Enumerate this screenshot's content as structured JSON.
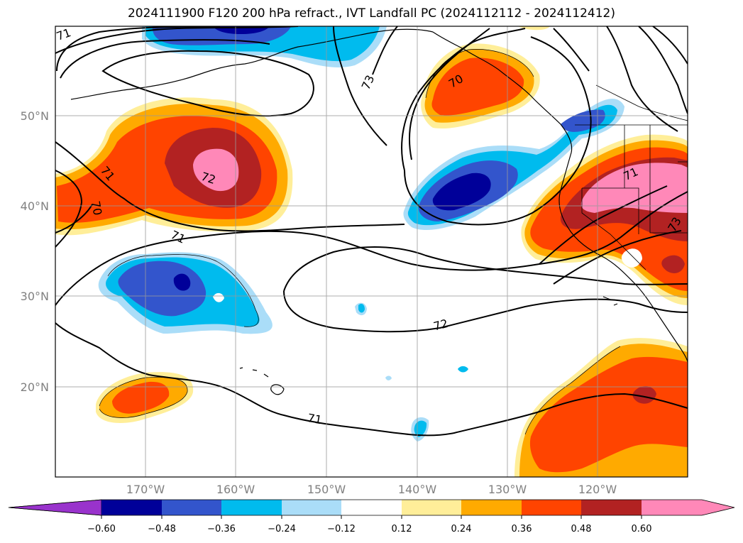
{
  "title": "2024111900 F120 200 hPa refract., IVT Landfall PC (2024112112 - 2024112412)",
  "map": {
    "lon_ticks": [
      "170°W",
      "160°W",
      "150°W",
      "140°W",
      "130°W",
      "120°W"
    ],
    "lat_ticks": [
      "50°N",
      "40°N",
      "30°N",
      "20°N"
    ],
    "lon_range": [
      -180,
      -110
    ],
    "lat_range": [
      10,
      60
    ],
    "contour_labels": [
      "71",
      "71",
      "70",
      "72",
      "71",
      "73",
      "70",
      "71",
      "73",
      "72",
      "71"
    ]
  },
  "colorbar": {
    "extend": "both",
    "colors": [
      "#9933cc",
      "#000099",
      "#3355cc",
      "#00bbee",
      "#aaddf8",
      "#ffffff",
      "#ffee99",
      "#ffaa00",
      "#ff4400",
      "#b22222",
      "#ff88b8",
      "#ff88b8"
    ],
    "tick_labels": [
      "−0.60",
      "−0.48",
      "−0.36",
      "−0.24",
      "−0.12",
      "0.12",
      "0.24",
      "0.36",
      "0.48",
      "0.60"
    ]
  }
}
